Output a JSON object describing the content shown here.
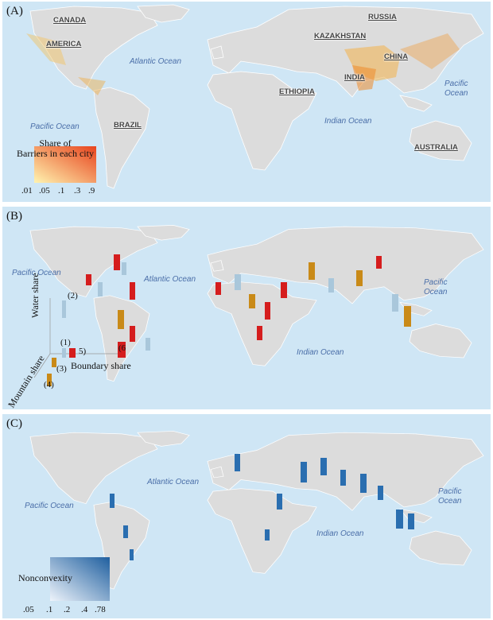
{
  "panel_a": {
    "label": "(A)",
    "oceans": [
      "Atlantic Ocean",
      "Indian Ocean",
      "Pacific Ocean",
      "Pacific\nOcean"
    ],
    "countries": [
      "CANADA",
      "AMERICA",
      "BRAZIL",
      "RUSSIA",
      "KAZAKHSTAN",
      "CHINA",
      "INDIA",
      "ETHIOPIA",
      "AUSTRALIA"
    ],
    "legend": {
      "title": "Share of\nBarriers in each city",
      "ticks": [
        ".01",
        ".05",
        ".1",
        ".3",
        ".9"
      ],
      "color_low": "#fff4b0",
      "color_high": "#e8431d"
    }
  },
  "panel_b": {
    "label": "(B)",
    "oceans": [
      "Pacific Ocean",
      "Atlantic Ocean",
      "Indian Ocean",
      "Pacific\nOcean"
    ],
    "axis_labels": {
      "water": "Water share",
      "mountain": "Mountain share",
      "boundary": "Boundary share"
    },
    "markers": [
      "(1)",
      "(2)",
      "(3)",
      "(4)",
      "5)",
      "(6"
    ],
    "colors": {
      "water": "#a9c7db",
      "mountain": "#c98a18",
      "boundary": "#d51d1d"
    }
  },
  "panel_c": {
    "label": "(C)",
    "oceans": [
      "Atlantic Ocean",
      "Pacific Ocean",
      "Indian Ocean",
      "Pacific\nOcean"
    ],
    "legend": {
      "title": "Nonconvexity",
      "ticks": [
        ".05",
        ".1",
        ".2",
        ".4",
        ".78"
      ],
      "color_low": "#eef4fb",
      "color_high": "#1f5f9f"
    }
  }
}
